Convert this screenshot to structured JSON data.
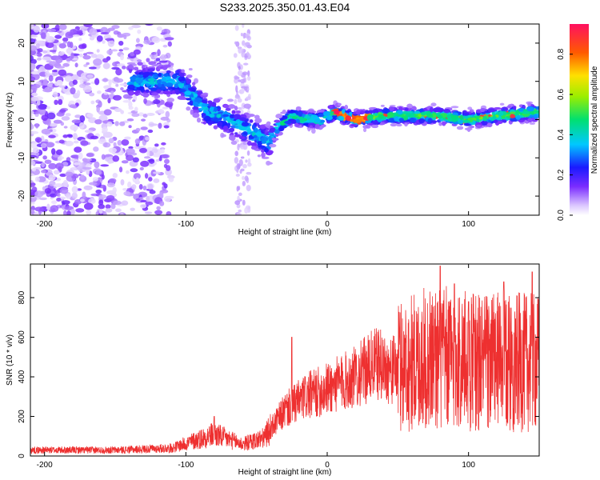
{
  "title": "S233.2025.350.01.43.E04",
  "chart_data": [
    {
      "type": "heatmap",
      "xlabel": "Height of straight line (km)",
      "ylabel": "Frequency (Hz)",
      "xlim": [
        -210,
        150
      ],
      "ylim": [
        -25,
        25
      ],
      "xticks": [
        -200,
        -100,
        0,
        100
      ],
      "yticks": [
        -20,
        -10,
        0,
        10,
        20
      ],
      "colorbar": {
        "label": "Normalized spectral amplitude",
        "range": [
          0,
          0.95
        ],
        "ticks": [
          "0.0",
          "0.2",
          "0.4",
          "0.6",
          "0.8"
        ]
      },
      "ridge": [
        {
          "x": -135,
          "f": 10
        },
        {
          "x": -120,
          "f": 10
        },
        {
          "x": -105,
          "f": 10
        },
        {
          "x": -95,
          "f": 6
        },
        {
          "x": -85,
          "f": 2
        },
        {
          "x": -75,
          "f": 1
        },
        {
          "x": -60,
          "f": -2
        },
        {
          "x": -50,
          "f": -4
        },
        {
          "x": -42,
          "f": -6
        },
        {
          "x": -35,
          "f": -2
        },
        {
          "x": -25,
          "f": 1
        },
        {
          "x": -15,
          "f": 0
        },
        {
          "x": -5,
          "f": 0
        },
        {
          "x": 5,
          "f": 2
        },
        {
          "x": 20,
          "f": 0
        },
        {
          "x": 40,
          "f": 1
        },
        {
          "x": 60,
          "f": 1
        },
        {
          "x": 80,
          "f": 1
        },
        {
          "x": 100,
          "f": 0
        },
        {
          "x": 120,
          "f": 1
        },
        {
          "x": 150,
          "f": 2
        }
      ]
    },
    {
      "type": "line",
      "xlabel": "Height of straight line (km)",
      "ylabel": "SNR (10 * v/v)",
      "xlim": [
        -210,
        150
      ],
      "ylim": [
        0,
        970
      ],
      "xticks": [
        -200,
        -100,
        0,
        100
      ],
      "yticks": [
        0,
        200,
        400,
        600,
        800
      ],
      "color": "#ee3030",
      "envelope": [
        {
          "x": -210,
          "y": 30
        },
        {
          "x": -150,
          "y": 30
        },
        {
          "x": -110,
          "y": 40
        },
        {
          "x": -80,
          "y": 110
        },
        {
          "x": -60,
          "y": 60
        },
        {
          "x": -45,
          "y": 90
        },
        {
          "x": -30,
          "y": 230
        },
        {
          "x": -15,
          "y": 300
        },
        {
          "x": 0,
          "y": 340
        },
        {
          "x": 20,
          "y": 400
        },
        {
          "x": 35,
          "y": 470
        },
        {
          "x": 45,
          "y": 430
        },
        {
          "x": 55,
          "y": 460
        },
        {
          "x": 75,
          "y": 500
        },
        {
          "x": 100,
          "y": 480
        },
        {
          "x": 150,
          "y": 470
        }
      ],
      "peaks": [
        {
          "x": -80,
          "y": 200
        },
        {
          "x": -25,
          "y": 600
        },
        {
          "x": 80,
          "y": 960
        },
        {
          "x": 90,
          "y": 870
        },
        {
          "x": 100,
          "y": 780
        },
        {
          "x": 125,
          "y": 880
        },
        {
          "x": 145,
          "y": 930
        }
      ]
    }
  ]
}
